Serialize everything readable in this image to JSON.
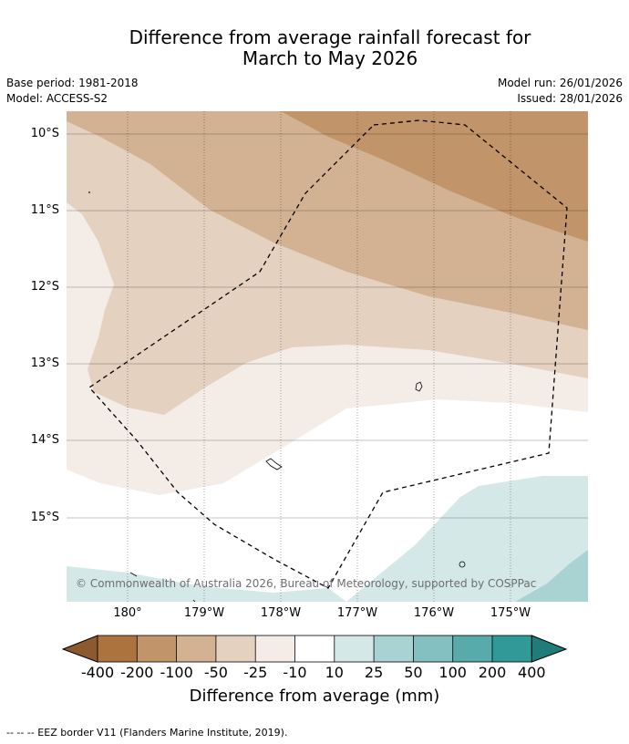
{
  "title_line1": "Difference from average rainfall forecast for",
  "title_line2": "March to May 2026",
  "meta_left": {
    "base_period": "Base period: 1981-2018",
    "model": "Model: ACCESS-S2"
  },
  "meta_right": {
    "model_run": "Model run: 26/01/2026",
    "issued": "Issued: 28/01/2026"
  },
  "map": {
    "lat_labels": [
      "10°S",
      "11°S",
      "12°S",
      "13°S",
      "14°S",
      "15°S"
    ],
    "lon_labels": [
      "180°",
      "179°W",
      "178°W",
      "177°W",
      "176°W",
      "175°W"
    ],
    "copyright": "© Commonwealth of Australia 2026, Bureau of Meteorology, supported by COSPPac"
  },
  "legend": {
    "title": "Difference from average (mm)",
    "labels": [
      "-400",
      "-200",
      "-100",
      "-50",
      "-25",
      "-10",
      "10",
      "25",
      "50",
      "100",
      "200",
      "400"
    ],
    "colors": {
      "lt_-400": "#8c5a2e",
      "-400_-200": "#ac733f",
      "-200_-100": "#c19569",
      "-100_-50": "#d3b293",
      "-50_-25": "#e4d1bf",
      "-25_-10": "#f4ede7",
      "-10_10": "#ffffff",
      "10_25": "#d4e8e7",
      "25_50": "#a9d3d3",
      "50_100": "#83c0bf",
      "100_200": "#58abab",
      "200_400": "#2f9a98",
      "gt_400": "#1f7c79"
    }
  },
  "footnote": "--  --  -- EEZ border V11 (Flanders Marine Institute, 2019)."
}
